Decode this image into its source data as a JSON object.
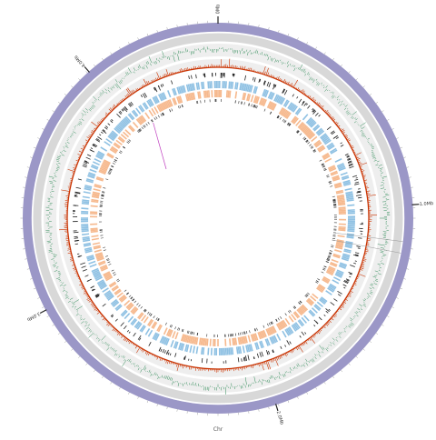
{
  "genome": {
    "major_ticks": [
      {
        "label": "0Mb",
        "fraction": 0.0
      },
      {
        "label": "1.0Mb",
        "fraction": 0.239
      },
      {
        "label": "2.0Mb",
        "fraction": 0.452
      },
      {
        "label": "3.0Mb",
        "fraction": 0.672
      },
      {
        "label": "4.0Mb",
        "fraction": 0.885
      }
    ],
    "minor_tick_count": 120,
    "bottom_label": "Chr"
  },
  "colors": {
    "ideogram_outer": "#9b97c7",
    "ideogram_inner": "#d8d8d8",
    "track_band": "#eeeeee",
    "gc_skew": "#2e8b57",
    "gc_content": "#cc3300",
    "forward_cds": "#8fc1e3",
    "reverse_cds": "#f6b98e",
    "rna": "#222222",
    "link": "#c040c0"
  },
  "link": {
    "from_fraction": 0.905,
    "label": ""
  }
}
